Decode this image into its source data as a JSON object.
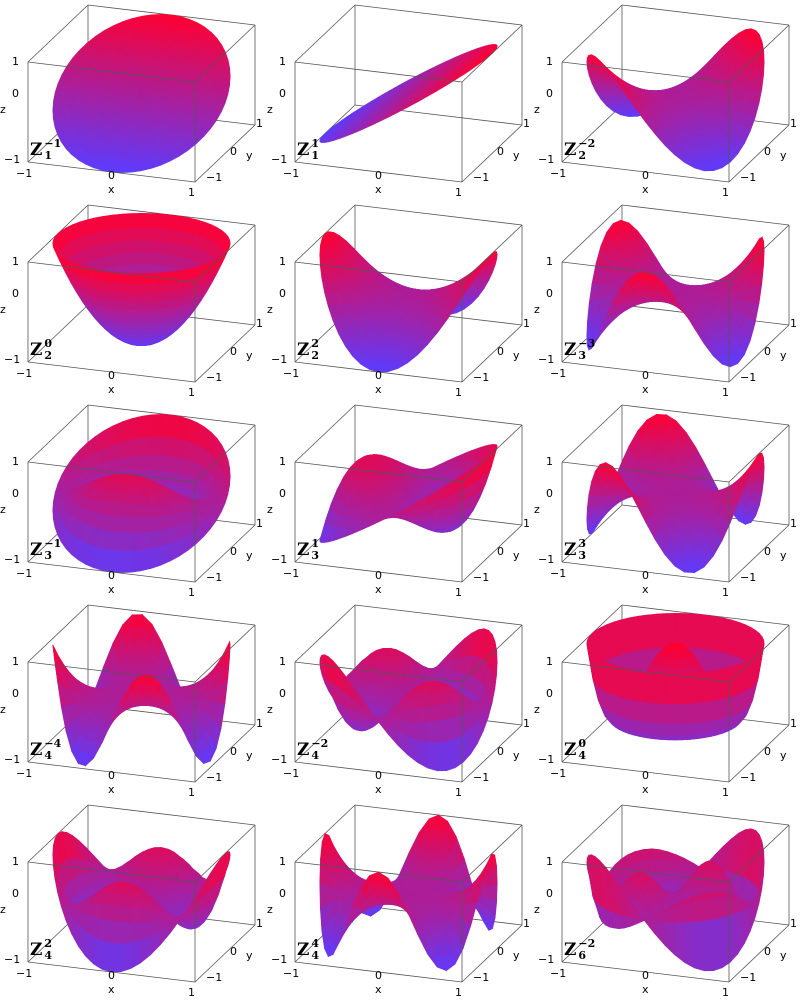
{
  "axes": {
    "z_label": "z",
    "x_label": "x",
    "y_label": "y",
    "ticks": [
      "−1",
      "0",
      "1"
    ]
  },
  "colors": {
    "low": "#5b3cff",
    "high": "#ff0030",
    "box": "#555555"
  },
  "chart_data": [
    {
      "type": "surface",
      "name": "Z",
      "m": "−1",
      "n": "1",
      "nv": 1,
      "mv": -1,
      "xlim": [
        -1,
        1
      ],
      "ylim": [
        -1,
        1
      ],
      "zlim": [
        -1,
        1
      ]
    },
    {
      "type": "surface",
      "name": "Z",
      "m": "1",
      "n": "1",
      "nv": 1,
      "mv": 1,
      "xlim": [
        -1,
        1
      ],
      "ylim": [
        -1,
        1
      ],
      "zlim": [
        -1,
        1
      ]
    },
    {
      "type": "surface",
      "name": "Z",
      "m": "−2",
      "n": "2",
      "nv": 2,
      "mv": -2,
      "xlim": [
        -1,
        1
      ],
      "ylim": [
        -1,
        1
      ],
      "zlim": [
        -1,
        1
      ]
    },
    {
      "type": "surface",
      "name": "Z",
      "m": "0",
      "n": "2",
      "nv": 2,
      "mv": 0,
      "xlim": [
        -1,
        1
      ],
      "ylim": [
        -1,
        1
      ],
      "zlim": [
        -1,
        1
      ]
    },
    {
      "type": "surface",
      "name": "Z",
      "m": "2",
      "n": "2",
      "nv": 2,
      "mv": 2,
      "xlim": [
        -1,
        1
      ],
      "ylim": [
        -1,
        1
      ],
      "zlim": [
        -1,
        1
      ]
    },
    {
      "type": "surface",
      "name": "Z",
      "m": "−3",
      "n": "3",
      "nv": 3,
      "mv": -3,
      "xlim": [
        -1,
        1
      ],
      "ylim": [
        -1,
        1
      ],
      "zlim": [
        -1,
        1
      ]
    },
    {
      "type": "surface",
      "name": "Z",
      "m": "−1",
      "n": "3",
      "nv": 3,
      "mv": -1,
      "xlim": [
        -1,
        1
      ],
      "ylim": [
        -1,
        1
      ],
      "zlim": [
        -1,
        1
      ]
    },
    {
      "type": "surface",
      "name": "Z",
      "m": "1",
      "n": "3",
      "nv": 3,
      "mv": 1,
      "xlim": [
        -1,
        1
      ],
      "ylim": [
        -1,
        1
      ],
      "zlim": [
        -1,
        1
      ]
    },
    {
      "type": "surface",
      "name": "Z",
      "m": "3",
      "n": "3",
      "nv": 3,
      "mv": 3,
      "xlim": [
        -1,
        1
      ],
      "ylim": [
        -1,
        1
      ],
      "zlim": [
        -1,
        1
      ]
    },
    {
      "type": "surface",
      "name": "Z",
      "m": "−4",
      "n": "4",
      "nv": 4,
      "mv": -4,
      "xlim": [
        -1,
        1
      ],
      "ylim": [
        -1,
        1
      ],
      "zlim": [
        -1,
        1
      ]
    },
    {
      "type": "surface",
      "name": "Z",
      "m": "−2",
      "n": "4",
      "nv": 4,
      "mv": -2,
      "xlim": [
        -1,
        1
      ],
      "ylim": [
        -1,
        1
      ],
      "zlim": [
        -1,
        1
      ]
    },
    {
      "type": "surface",
      "name": "Z",
      "m": "0",
      "n": "4",
      "nv": 4,
      "mv": 0,
      "xlim": [
        -1,
        1
      ],
      "ylim": [
        -1,
        1
      ],
      "zlim": [
        -1,
        1
      ]
    },
    {
      "type": "surface",
      "name": "Z",
      "m": "2",
      "n": "4",
      "nv": 4,
      "mv": 2,
      "xlim": [
        -1,
        1
      ],
      "ylim": [
        -1,
        1
      ],
      "zlim": [
        -1,
        1
      ]
    },
    {
      "type": "surface",
      "name": "Z",
      "m": "4",
      "n": "4",
      "nv": 4,
      "mv": 4,
      "xlim": [
        -1,
        1
      ],
      "ylim": [
        -1,
        1
      ],
      "zlim": [
        -1,
        1
      ]
    },
    {
      "type": "surface",
      "name": "Z",
      "m": "−2",
      "n": "6",
      "nv": 6,
      "mv": -2,
      "xlim": [
        -1,
        1
      ],
      "ylim": [
        -1,
        1
      ],
      "zlim": [
        -1,
        1
      ]
    }
  ]
}
